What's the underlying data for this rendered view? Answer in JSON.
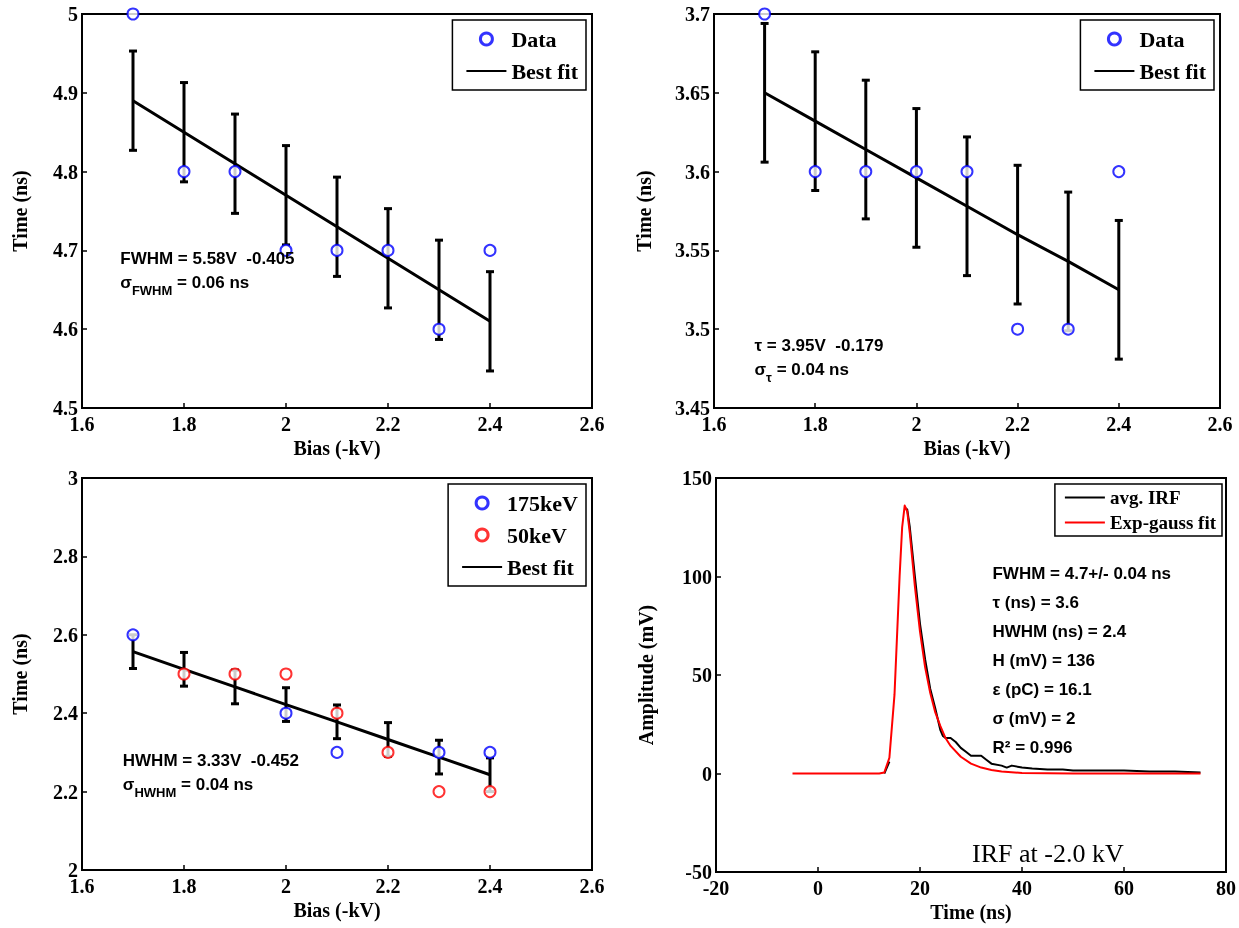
{
  "chart_data": [
    {
      "type": "scatter",
      "xlabel": "Bias (-kV)",
      "ylabel": "Time (ns)",
      "x": [
        1.7,
        1.8,
        1.9,
        2.0,
        2.1,
        2.2,
        2.3,
        2.4
      ],
      "xlim": [
        1.6,
        2.6
      ],
      "xticks": [
        1.6,
        1.8,
        2,
        2.2,
        2.4,
        2.6
      ],
      "ylim": [
        4.5,
        5
      ],
      "yticks": [
        4.5,
        4.6,
        4.7,
        4.8,
        4.9,
        5
      ],
      "legend": "top right",
      "marker": "circle",
      "annotations": [
        "FWHM = 5.58V  -0.405",
        "σ$_{FWHM}$ = 0.06 ns"
      ],
      "series": [
        {
          "name": "Data",
          "color": "#0000ff",
          "values": [
            5.0,
            4.8,
            4.8,
            4.7,
            4.7,
            4.7,
            4.6,
            4.7
          ]
        },
        {
          "name": "Best fit",
          "type": "line",
          "marker": "none",
          "color": "#000000",
          "values": [
            4.89,
            4.85,
            4.81,
            4.77,
            4.73,
            4.69,
            4.65,
            4.61
          ],
          "errors": [
            0.063,
            0.063,
            0.063,
            0.063,
            0.063,
            0.063,
            0.063,
            0.063
          ]
        }
      ]
    },
    {
      "type": "scatter",
      "xlabel": "Bias (-kV)",
      "ylabel": "Time (ns)",
      "x": [
        1.7,
        1.8,
        1.9,
        2.0,
        2.1,
        2.2,
        2.3,
        2.4
      ],
      "xlim": [
        1.6,
        2.6
      ],
      "xticks": [
        1.6,
        1.8,
        2,
        2.2,
        2.4,
        2.6
      ],
      "ylim": [
        3.45,
        3.7
      ],
      "yticks": [
        3.45,
        3.5,
        3.55,
        3.6,
        3.65,
        3.7
      ],
      "legend": "top right",
      "marker": "circle",
      "annotations": [
        "τ = 3.95V  -0.179",
        "σ$_{τ}$ = 0.04 ns"
      ],
      "series": [
        {
          "name": "Data",
          "color": "#0000ff",
          "values": [
            3.7,
            3.6,
            3.6,
            3.6,
            3.6,
            3.5,
            3.5,
            3.6
          ]
        },
        {
          "name": "Best fit",
          "type": "line",
          "marker": "none",
          "color": "#000000",
          "values": [
            3.65,
            3.632,
            3.614,
            3.596,
            3.578,
            3.56,
            3.543,
            3.525
          ],
          "errors": [
            0.044,
            0.044,
            0.044,
            0.044,
            0.044,
            0.044,
            0.044,
            0.044
          ]
        }
      ]
    },
    {
      "type": "scatter",
      "xlabel": "Bias (-kV)",
      "ylabel": "Time (ns)",
      "x": [
        1.7,
        1.8,
        1.9,
        2.0,
        2.1,
        2.2,
        2.3,
        2.4
      ],
      "xlim": [
        1.6,
        2.6
      ],
      "xticks": [
        1.6,
        1.8,
        2,
        2.2,
        2.4,
        2.6
      ],
      "ylim": [
        2,
        3
      ],
      "yticks": [
        2,
        2.2,
        2.4,
        2.6,
        2.8,
        3
      ],
      "legend": "top right",
      "marker": "circle",
      "annotations": [
        "HWHM = 3.33V  -0.452",
        "σ$_{HWHM}$ = 0.04 ns"
      ],
      "series": [
        {
          "name": "175keV",
          "color": "#0000ff",
          "values": [
            2.6,
            null,
            null,
            2.4,
            2.3,
            null,
            2.3,
            2.3
          ]
        },
        {
          "name": "50keV",
          "color": "#ff0000",
          "values": [
            null,
            2.5,
            2.5,
            2.5,
            2.4,
            2.3,
            2.2,
            2.2
          ]
        },
        {
          "name": "Best fit",
          "type": "line",
          "marker": "none",
          "color": "#000000",
          "values": [
            2.557,
            2.512,
            2.467,
            2.422,
            2.378,
            2.333,
            2.288,
            2.243
          ],
          "errors": [
            0.043,
            0.043,
            0.043,
            0.043,
            0.043,
            0.043,
            0.043,
            0.043
          ]
        }
      ]
    },
    {
      "type": "line",
      "xlabel": "Time (ns)",
      "ylabel": "Amplitude (mV)",
      "xlim": [
        -20,
        80
      ],
      "xticks": [
        -20,
        0,
        20,
        40,
        60,
        80
      ],
      "ylim": [
        -50,
        150
      ],
      "yticks": [
        -50,
        0,
        50,
        100,
        150
      ],
      "legend": "top right",
      "marker": "none",
      "annotations": [
        "FWHM = 4.7+/- 0.04 ns",
        "τ (ns) = 3.6",
        "HWHM (ns) = 2.4",
        "H (mV) = 136",
        "ε (pC) = 16.1",
        "σ (mV) = 2",
        "R² = 0.996",
        "IRF at -2.0 kV"
      ],
      "series": [
        {
          "name": "avg. IRF",
          "color": "#000000",
          "x": [
            13,
            14,
            15,
            16,
            16.5,
            17,
            17.5,
            18,
            19,
            20,
            21,
            22,
            23,
            24,
            24.5,
            25,
            26,
            27,
            28,
            29,
            30,
            32,
            33,
            34,
            36,
            37,
            38,
            40,
            42,
            45,
            48,
            50,
            55,
            60,
            65,
            70,
            75
          ],
          "values": [
            0,
            6,
            null,
            null,
            null,
            135,
            134,
            125,
            100,
            76,
            58,
            43,
            33,
            22,
            19,
            18,
            18,
            16,
            13,
            11,
            9,
            9,
            7,
            5,
            4,
            3,
            4,
            3,
            2.5,
            2,
            2,
            1.5,
            1.5,
            1.5,
            1,
            1,
            0.5
          ]
        },
        {
          "name": "Exp-gauss fit",
          "color": "#ff0000",
          "x": [
            -5,
            12,
            13,
            14,
            15,
            16,
            16.5,
            17,
            17.5,
            18,
            19,
            20,
            21,
            22,
            23,
            24,
            25,
            26,
            28,
            30,
            32,
            34,
            36,
            40,
            45,
            50,
            75
          ],
          "values": [
            0,
            0,
            0.5,
            8,
            40,
            100,
            125,
            136,
            133,
            122,
            95,
            72,
            54,
            41,
            31,
            24,
            18,
            14,
            8.5,
            5,
            3,
            1.8,
            1,
            0.3,
            0.1,
            0,
            0
          ]
        }
      ]
    }
  ]
}
